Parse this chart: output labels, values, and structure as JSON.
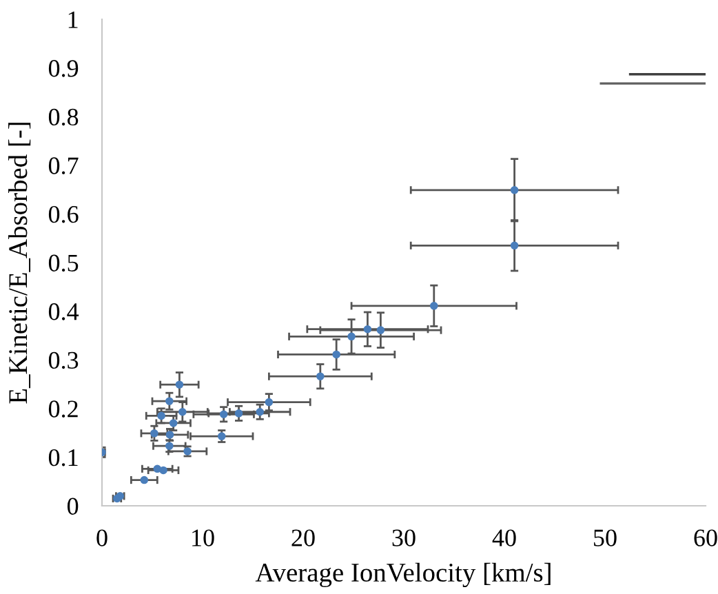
{
  "chart_data": {
    "type": "scatter",
    "xlabel": "Average IonVelocity [km/s]",
    "ylabel": "E_Kinetic/E_Absorbed [-]",
    "xlim": [
      0,
      60
    ],
    "xticks": [
      0,
      10,
      20,
      30,
      40,
      50,
      60
    ],
    "ylim": [
      0,
      1
    ],
    "yticks": [
      0,
      0.1,
      0.2,
      0.3,
      0.4,
      0.5,
      0.6,
      0.7,
      0.8,
      0.9,
      1
    ],
    "grid": false,
    "legend": false,
    "marker": "circle",
    "series": [
      {
        "color": "#4a7ebb",
        "x": [
          0,
          1.5,
          1.8,
          4.2,
          5.5,
          6.1,
          7.7,
          6.7,
          8.0,
          5.9,
          7.1,
          5.2,
          6.75,
          11.9,
          6.7,
          8.5,
          12.1,
          13.6,
          15.7,
          16.6,
          21.7,
          23.3,
          24.8,
          26.4,
          27.7,
          33.0,
          41.0,
          41.0
        ],
        "values": [
          0.11,
          0.015,
          0.02,
          0.053,
          0.076,
          0.073,
          0.249,
          0.215,
          0.193,
          0.185,
          0.17,
          0.149,
          0.146,
          0.143,
          0.123,
          0.112,
          0.188,
          0.19,
          0.193,
          0.213,
          0.266,
          0.311,
          0.348,
          0.363,
          0.361,
          0.411,
          0.649,
          0.535
        ],
        "errors": [
          0.01,
          null,
          null,
          null,
          null,
          null,
          0.025,
          0.017,
          0.02,
          0.015,
          0.015,
          0.015,
          0.012,
          0.012,
          0.012,
          0.01,
          0.015,
          0.015,
          0.015,
          0.017,
          0.025,
          0.031,
          0.035,
          0.035,
          0.036,
          0.042,
          0.064,
          0.052
        ],
        "xerrors": [
          0.3,
          0.4,
          0.4,
          1.3,
          1.5,
          1.5,
          1.9,
          1.7,
          2.5,
          1.5,
          1.7,
          1.3,
          1.8,
          3.1,
          1.6,
          1.9,
          3.0,
          3.0,
          3.0,
          4.1,
          5.1,
          5.8,
          6.2,
          6.0,
          6.0,
          8.2,
          10.3,
          10.3
        ]
      },
      {
        "type": "line",
        "marker": "none",
        "color": "#404040",
        "x": [
          52.5,
          60
        ],
        "values": [
          0.887,
          0.887
        ]
      },
      {
        "type": "line",
        "marker": "none",
        "color": "#606060",
        "x": [
          49.6,
          60
        ],
        "values": [
          0.868,
          0.868
        ]
      }
    ]
  }
}
